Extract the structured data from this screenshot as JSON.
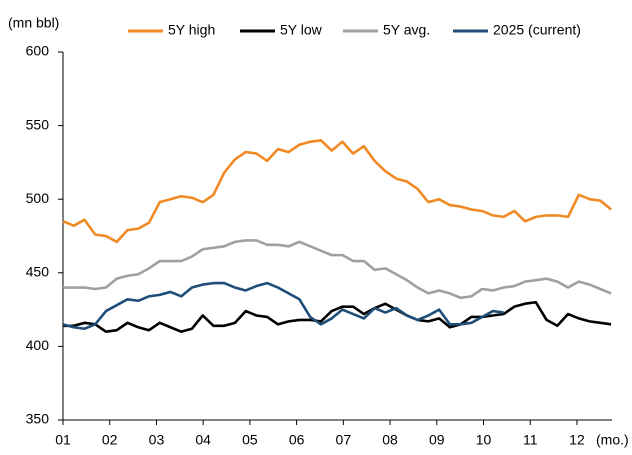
{
  "chart_data": {
    "type": "line",
    "y_label": "(mn bbl)",
    "x_label": "(mo.)",
    "x": [
      1,
      1.23,
      1.46,
      1.69,
      1.92,
      2.15,
      2.38,
      2.61,
      2.84,
      3.07,
      3.3,
      3.53,
      3.76,
      3.99,
      4.22,
      4.45,
      4.68,
      4.91,
      5.14,
      5.37,
      5.6,
      5.83,
      6.06,
      6.29,
      6.52,
      6.75,
      6.98,
      7.21,
      7.44,
      7.67,
      7.9,
      8.13,
      8.36,
      8.59,
      8.82,
      9.05,
      9.28,
      9.51,
      9.74,
      9.97,
      10.2,
      10.43,
      10.66,
      10.89,
      11.12,
      11.35,
      11.58,
      11.81,
      12.04,
      12.27,
      12.5,
      12.73
    ],
    "series": [
      {
        "name": "5Y high",
        "color": "#f08a24",
        "values": [
          485,
          482,
          486,
          476,
          475,
          471,
          479,
          480,
          484,
          498,
          500,
          502,
          501,
          498,
          503,
          518,
          527,
          532,
          531,
          526,
          534,
          532,
          537,
          539,
          540,
          533,
          539,
          531,
          536,
          526,
          519,
          514,
          512,
          507,
          498,
          500,
          496,
          495,
          493,
          492,
          489,
          488,
          492,
          485,
          488,
          489,
          489,
          488,
          503,
          500,
          499,
          493
        ]
      },
      {
        "name": "5Y low",
        "color": "#000000",
        "values": [
          414,
          414,
          416,
          415,
          410,
          411,
          416,
          413,
          411,
          416,
          413,
          410,
          412,
          421,
          414,
          414,
          416,
          424,
          421,
          420,
          415,
          417,
          418,
          418,
          417,
          424,
          427,
          427,
          422,
          426,
          429,
          425,
          421,
          418,
          417,
          419,
          413,
          415,
          420,
          420,
          421,
          422,
          427,
          429,
          430,
          418,
          414,
          422,
          419,
          417,
          416,
          415
        ]
      },
      {
        "name": "5Y avg.",
        "color": "#a0a0a0",
        "values": [
          440,
          440,
          440,
          439,
          440,
          446,
          448,
          449,
          453,
          458,
          458,
          458,
          461,
          466,
          467,
          468,
          471,
          472,
          472,
          469,
          469,
          468,
          471,
          468,
          465,
          462,
          462,
          458,
          458,
          452,
          453,
          449,
          445,
          440,
          436,
          438,
          436,
          433,
          434,
          439,
          438,
          440,
          441,
          444,
          445,
          446,
          444,
          440,
          444,
          442,
          439,
          436
        ]
      },
      {
        "name": "2025 (current)",
        "color": "#1f4e79",
        "values": [
          415,
          413,
          412,
          415,
          424,
          428,
          432,
          431,
          434,
          435,
          437,
          434,
          440,
          442,
          443,
          443,
          440,
          438,
          441,
          443,
          440,
          436,
          432,
          420,
          415,
          419,
          425,
          422,
          419,
          426,
          423,
          426,
          421,
          418,
          421,
          425,
          415,
          415,
          416,
          420,
          424,
          423,
          null,
          null,
          null,
          null,
          null,
          null,
          null,
          null,
          null,
          null
        ]
      }
    ],
    "xlim": [
      1,
      12.75
    ],
    "xticks": [
      {
        "value": 1,
        "label": "01"
      },
      {
        "value": 2,
        "label": "02"
      },
      {
        "value": 3,
        "label": "03"
      },
      {
        "value": 4,
        "label": "04"
      },
      {
        "value": 5,
        "label": "05"
      },
      {
        "value": 6,
        "label": "06"
      },
      {
        "value": 7,
        "label": "07"
      },
      {
        "value": 8,
        "label": "08"
      },
      {
        "value": 9,
        "label": "09"
      },
      {
        "value": 10,
        "label": "10"
      },
      {
        "value": 11,
        "label": "11"
      },
      {
        "value": 12,
        "label": "12"
      }
    ],
    "ylim": [
      350,
      600
    ],
    "yticks": [
      350,
      400,
      450,
      500,
      550,
      600
    ],
    "grid": false,
    "legend": "top"
  }
}
